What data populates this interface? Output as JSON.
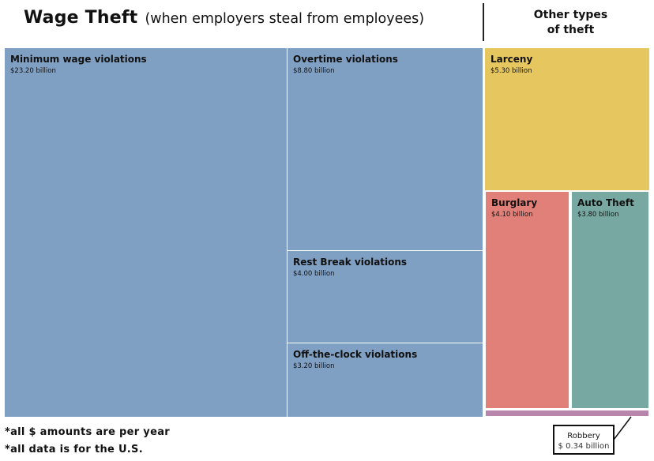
{
  "header": {
    "title_main": "Wage Theft",
    "title_sub": "(when employers steal from employees)",
    "side_title_line1": "Other types",
    "side_title_line2": "of theft"
  },
  "chart_data": {
    "type": "treemap",
    "title": "Wage Theft (when employers steal from employees)",
    "unit": "billion USD per year",
    "groups": [
      {
        "name": "Wage Theft",
        "color": "#7f9fc3",
        "items": [
          {
            "label": "Minimum wage violations",
            "value_text": "$23.20 billion",
            "value": 23.2
          },
          {
            "label": "Overtime violations",
            "value_text": "$8.80 billion",
            "value": 8.8
          },
          {
            "label": "Rest Break violations",
            "value_text": "$4.00 billion",
            "value": 4.0
          },
          {
            "label": "Off-the-clock violations",
            "value_text": "$3.20 billion",
            "value": 3.2
          }
        ]
      },
      {
        "name": "Other types of theft",
        "items": [
          {
            "label": "Larceny",
            "value_text": "$5.30 billion",
            "value": 5.3,
            "color": "#e6c75f"
          },
          {
            "label": "Burglary",
            "value_text": "$4.10 billion",
            "value": 4.1,
            "color": "#e18078"
          },
          {
            "label": "Auto Theft",
            "value_text": "$3.80 billion",
            "value": 3.8,
            "color": "#77a8a1"
          },
          {
            "label": "Robbery",
            "value_text": "$ 0.34 billion",
            "value": 0.34,
            "color": "#b886ad"
          }
        ]
      }
    ]
  },
  "footnotes": {
    "line1": "*all $ amounts are per year",
    "line2": "*all data is for the U.S."
  }
}
